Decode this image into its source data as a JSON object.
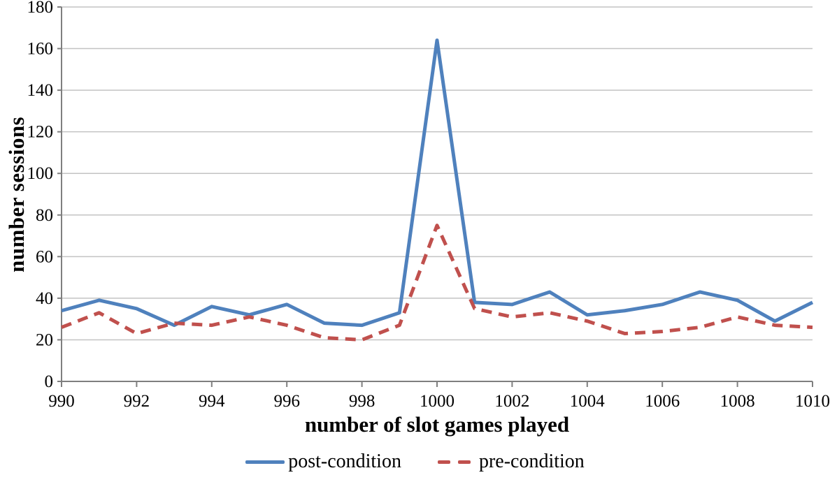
{
  "figure": {
    "background": "#ffffff"
  },
  "chart_data": {
    "type": "line",
    "title": "",
    "xlabel": "number of slot games played",
    "ylabel": "number sessions",
    "xlim": [
      990,
      1010
    ],
    "ylim": [
      0,
      180
    ],
    "xticks": [
      990,
      992,
      994,
      996,
      998,
      1000,
      1002,
      1004,
      1006,
      1008,
      1010
    ],
    "yticks": [
      0,
      20,
      40,
      60,
      80,
      100,
      120,
      140,
      160,
      180
    ],
    "grid": true,
    "legend_position": "bottom",
    "x": [
      990,
      991,
      992,
      993,
      994,
      995,
      996,
      997,
      998,
      999,
      1000,
      1001,
      1002,
      1003,
      1004,
      1005,
      1006,
      1007,
      1008,
      1009,
      1010
    ],
    "series": [
      {
        "name": "post-condition",
        "style": "solid",
        "color": "#4F81BD",
        "values": [
          34,
          39,
          35,
          27,
          36,
          32,
          37,
          28,
          27,
          33,
          164,
          38,
          37,
          43,
          32,
          34,
          37,
          43,
          39,
          29,
          38
        ]
      },
      {
        "name": "pre-condition",
        "style": "dashed",
        "color": "#C0504D",
        "values": [
          26,
          33,
          23,
          28,
          27,
          31,
          27,
          21,
          20,
          27,
          75,
          35,
          31,
          33,
          29,
          23,
          24,
          26,
          31,
          27,
          26
        ]
      }
    ],
    "colors": {
      "gridline": "#C3C3C3",
      "axis": "#7F7F7F",
      "text": "#000000"
    }
  }
}
